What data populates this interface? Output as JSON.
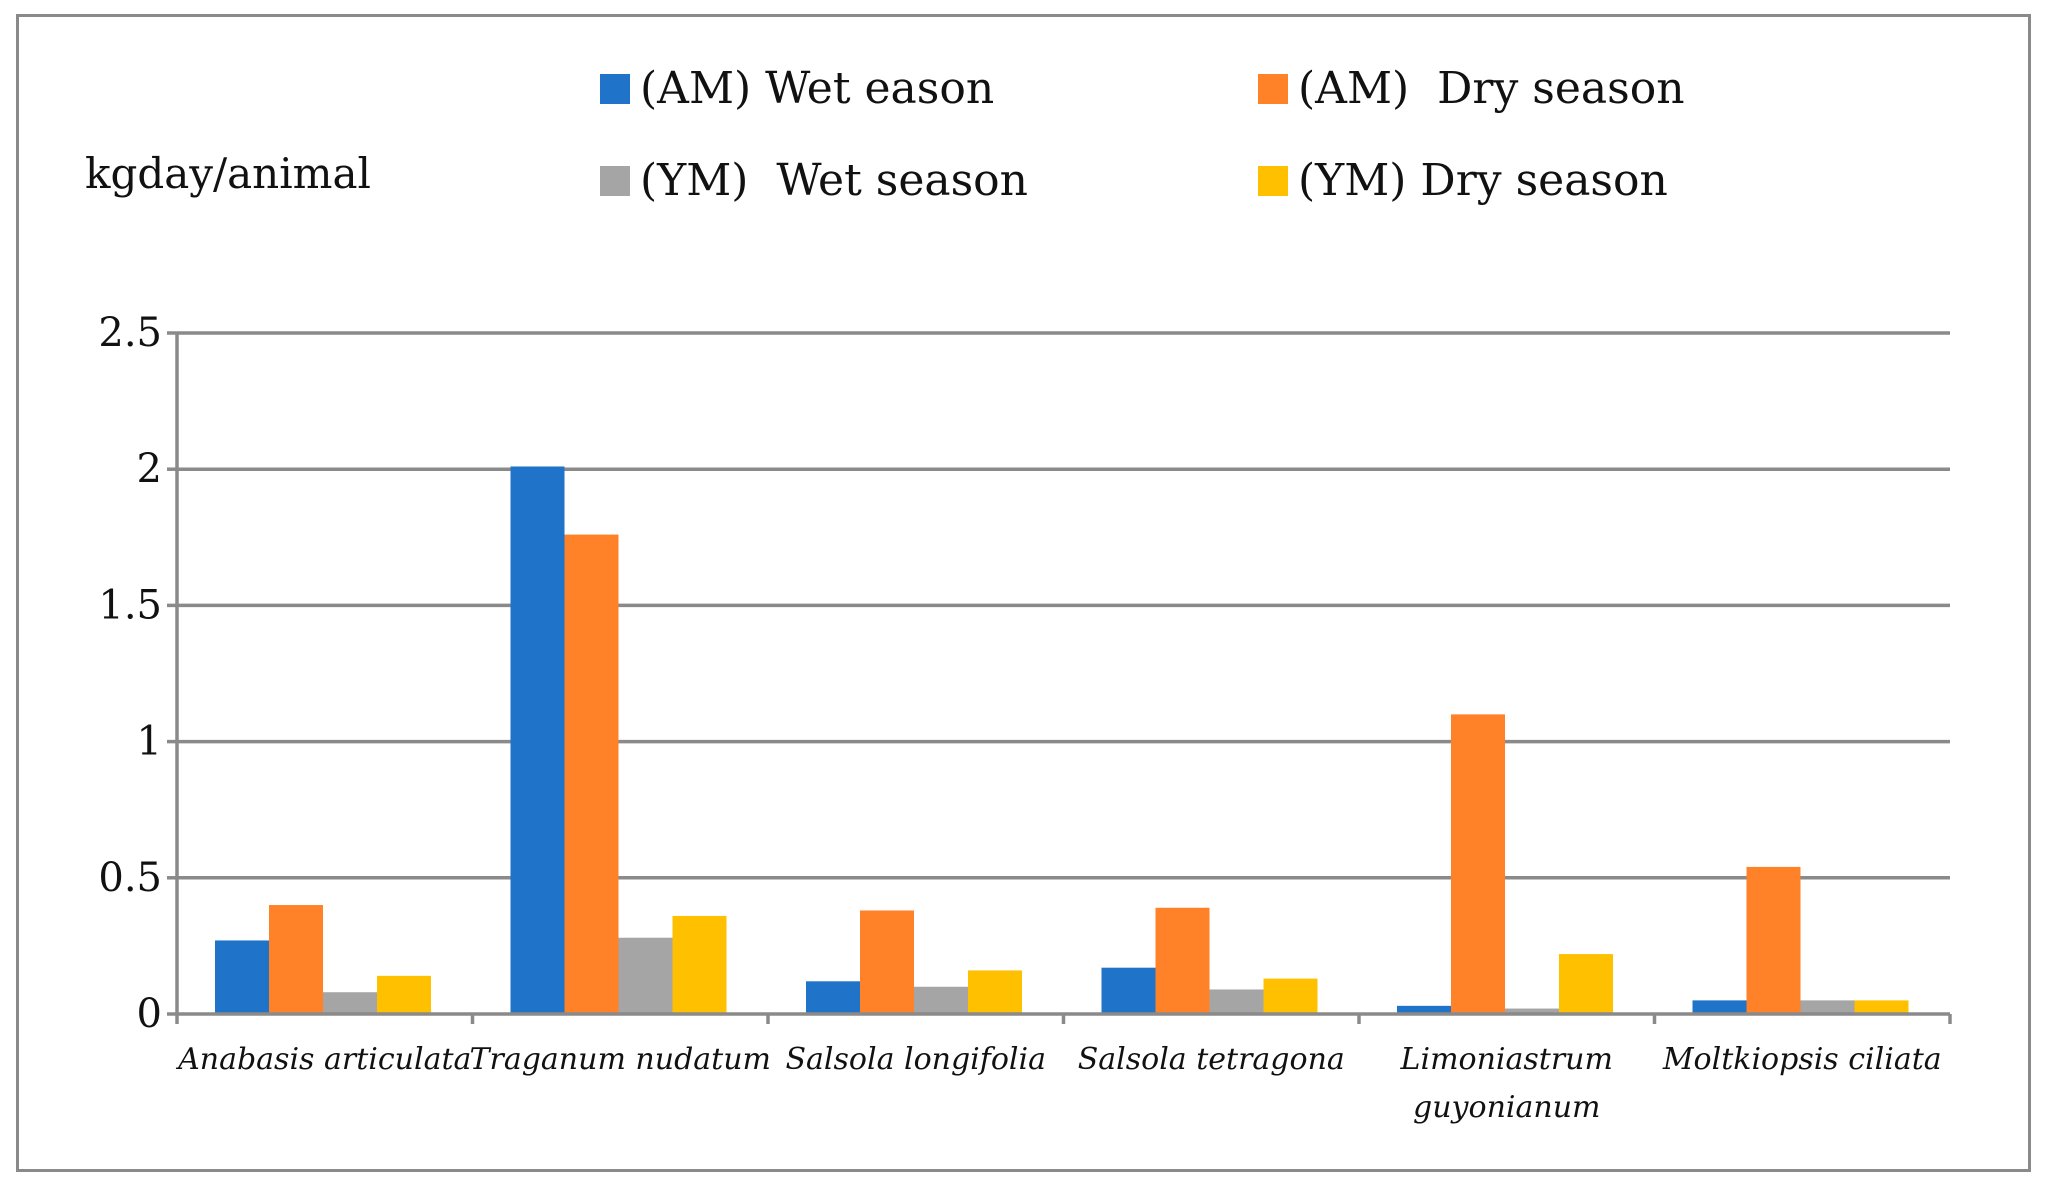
{
  "chart_data": {
    "type": "bar",
    "title": "",
    "ylabel": "kgday/animal",
    "xlabel": "",
    "ylim": [
      0,
      2.5
    ],
    "yticks": [
      0,
      0.5,
      1,
      1.5,
      2,
      2.5
    ],
    "ytick_labels": [
      "0",
      "0.5",
      "1",
      "1.5",
      "2",
      "2.5"
    ],
    "grid": true,
    "legend_position": "top",
    "categories": [
      [
        "Anabasis articulata"
      ],
      [
        "Traganum nudatum"
      ],
      [
        "Salsola longifolia"
      ],
      [
        "Salsola tetragona"
      ],
      [
        "Limoniastrum",
        "guyonianum"
      ],
      [
        "Moltkiopsis ciliata"
      ]
    ],
    "series": [
      {
        "name": "(AM) Wet eason",
        "color": "#1f73c8",
        "values": [
          0.27,
          2.01,
          0.12,
          0.17,
          0.03,
          0.05
        ]
      },
      {
        "name": "(AM)  Dry season",
        "color": "#ff8128",
        "values": [
          0.4,
          1.76,
          0.38,
          0.39,
          1.1,
          0.54
        ]
      },
      {
        "name": "(YM)  Wet season",
        "color": "#a5a5a5",
        "values": [
          0.08,
          0.28,
          0.1,
          0.09,
          0.02,
          0.05
        ]
      },
      {
        "name": "(YM) Dry season",
        "color": "#ffc000",
        "values": [
          0.14,
          0.36,
          0.16,
          0.13,
          0.22,
          0.05
        ]
      }
    ]
  }
}
